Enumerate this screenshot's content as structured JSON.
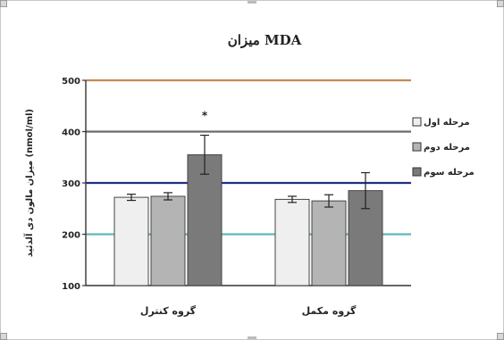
{
  "chart_data": {
    "type": "bar",
    "title": "MDA میزان",
    "ylabel": "میزان مالون دی آلدئید (nmol/ml)",
    "xlabel": "",
    "ylim": [
      100,
      500
    ],
    "yticks": [
      "100",
      "200",
      "300",
      "400",
      "500"
    ],
    "categories": [
      "گروه کنترل",
      "گروه مکمل"
    ],
    "series": [
      {
        "name": "مرحله اول",
        "color": "#efefef",
        "values": [
          272,
          268
        ],
        "errors": [
          6,
          6
        ]
      },
      {
        "name": "مرحله دوم",
        "color": "#b4b4b4",
        "values": [
          274,
          265
        ],
        "errors": [
          7,
          12
        ]
      },
      {
        "name": "مرحله سوم",
        "color": "#7a7a7a",
        "values": [
          355,
          285
        ],
        "errors": [
          38,
          35
        ]
      }
    ],
    "reference_lines": [
      {
        "value": 500,
        "color": "#c48a52"
      },
      {
        "value": 400,
        "color": "#6b6b6b"
      },
      {
        "value": 300,
        "color": "#1f2f86"
      },
      {
        "value": 200,
        "color": "#5fb9b6"
      }
    ],
    "annotations": [
      {
        "text": "*",
        "category": 0,
        "series": 2
      }
    ],
    "grid": false,
    "legend_position": "right"
  }
}
